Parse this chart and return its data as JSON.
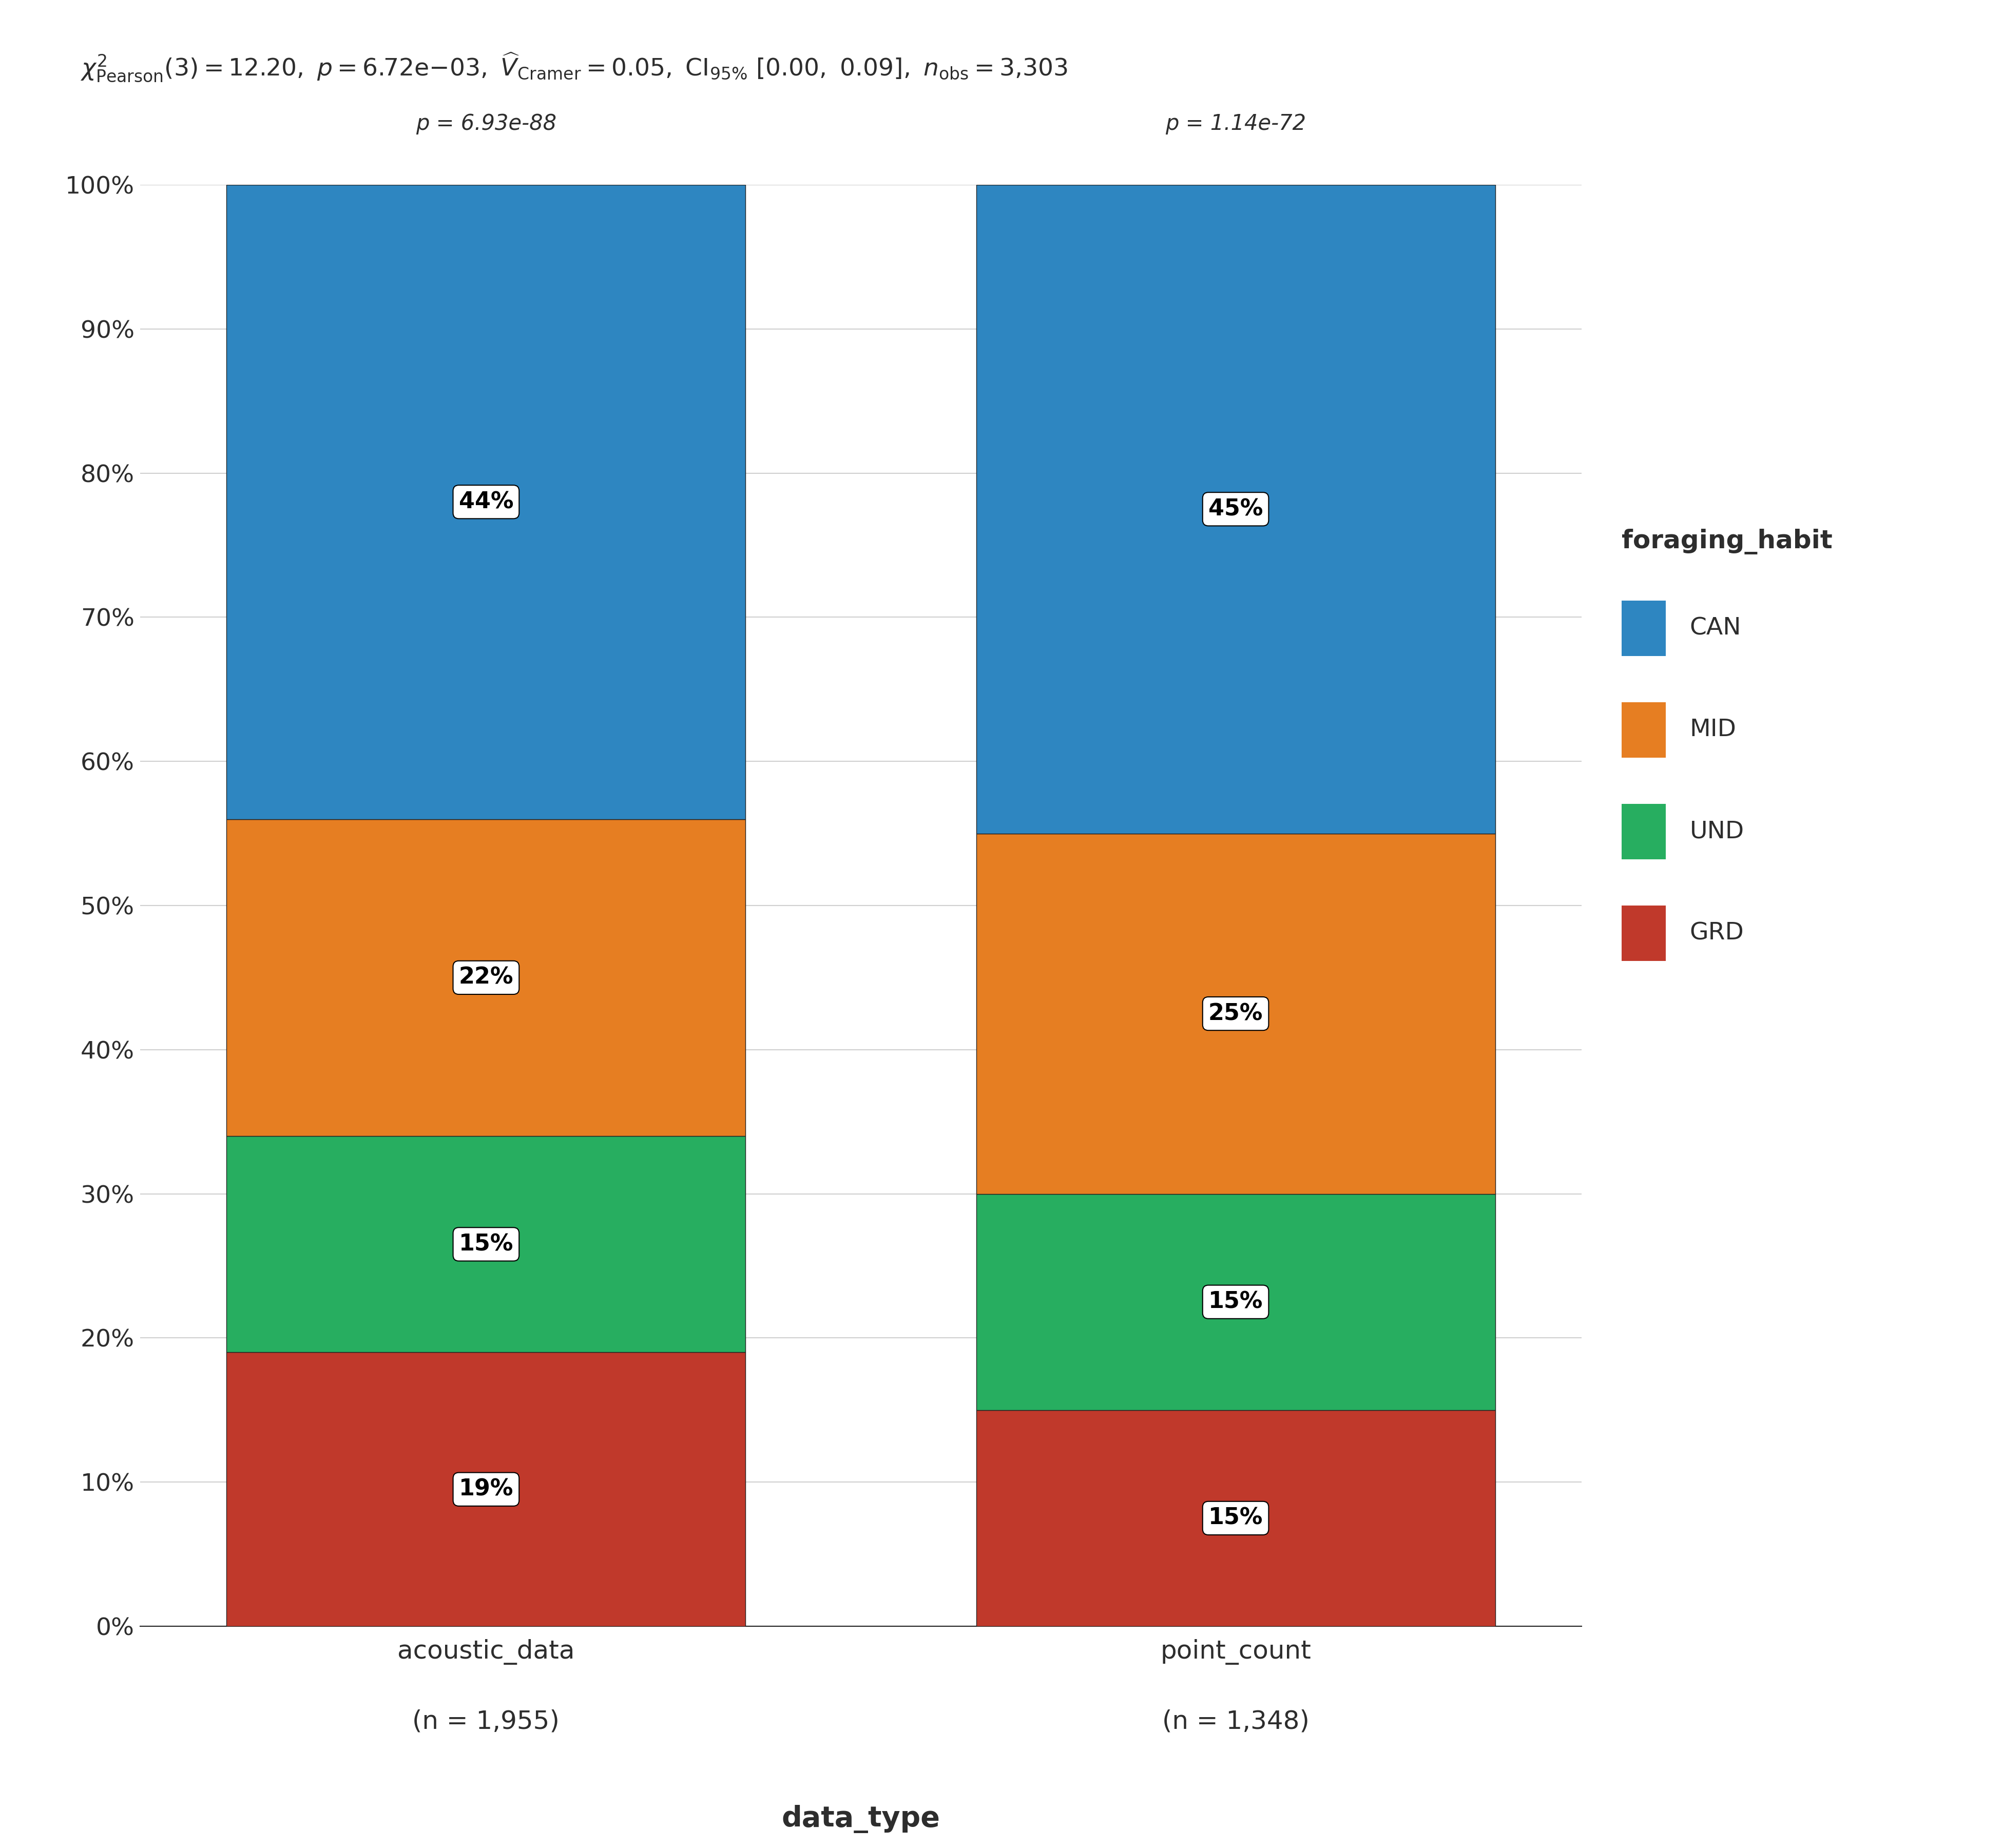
{
  "bars": {
    "acoustic_data": {
      "n": "1,955",
      "p_value": "p = 6.93e-88",
      "GRD": 19,
      "UND": 15,
      "MID": 22,
      "CAN": 44
    },
    "point_count": {
      "n": "1,348",
      "p_value": "p = 1.14e-72",
      "GRD": 15,
      "UND": 15,
      "MID": 25,
      "CAN": 45
    }
  },
  "guilds": [
    "GRD",
    "UND",
    "MID",
    "CAN"
  ],
  "colors": {
    "CAN": "#2e86c1",
    "MID": "#e67e22",
    "UND": "#27ae60",
    "GRD": "#c0392b"
  },
  "xlabel": "data_type",
  "yticks": [
    0,
    10,
    20,
    30,
    40,
    50,
    60,
    70,
    80,
    90,
    100
  ],
  "ytick_labels": [
    "0%",
    "10%",
    "20%",
    "30%",
    "40%",
    "50%",
    "60%",
    "70%",
    "80%",
    "90%",
    "100%"
  ],
  "legend_title": "foraging_habit",
  "legend_guilds": [
    "CAN",
    "MID",
    "UND",
    "GRD"
  ],
  "background_color": "#ffffff",
  "plot_bg_color": "#ffffff",
  "grid_color": "#d0d0d0",
  "bar_edge_color": "#222222",
  "title_color": "#2d2d2d",
  "tick_color": "#2d2d2d",
  "title_text": "chi2_Pearson(3) = 12.20, p = 6.72e-03, V_Cramer = 0.05, CI95% [0.00, 0.09], n_obs = 3,303",
  "label_font_size": 36,
  "title_font_size": 34,
  "tick_font_size": 34,
  "legend_font_size": 34,
  "pvalue_font_size": 30,
  "n_font_size": 32,
  "xlabel_font_size": 40,
  "bar_label_font_size": 32
}
